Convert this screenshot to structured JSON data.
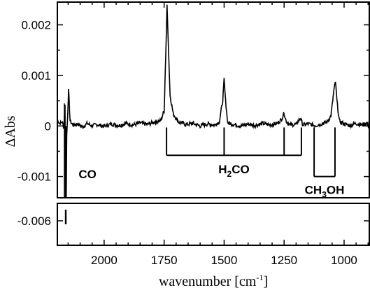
{
  "chart_data": {
    "type": "line",
    "xlabel": "wavenumber [cm",
    "xlabel_sup": "-1",
    "xlabel_end": "]",
    "ylabel": "ΔAbs",
    "x_reversed": true,
    "xlim": [
      2195,
      895
    ],
    "ylim_main": [
      -0.00142,
      0.00245
    ],
    "ylim_break": [
      -0.0067,
      -0.0055
    ],
    "xticks": [
      2000,
      1750,
      1500,
      1250,
      1000
    ],
    "xtick_labels": [
      "2000",
      "1750",
      "1500",
      "1250",
      "1000"
    ],
    "yticks_main": [
      0.002,
      0.001,
      0,
      -0.001
    ],
    "ytick_labels_main": [
      "0.002",
      "0.001",
      "0",
      "-0.001"
    ],
    "yticks_break": [
      -0.006
    ],
    "ytick_labels_break": [
      "-0.006"
    ],
    "series": [
      {
        "values": [
          [
            2195,
            0.00012
          ],
          [
            2185,
            5e-05
          ],
          [
            2175,
            8e-05
          ],
          [
            2168,
            -3e-05
          ],
          [
            2163,
            0.00045
          ],
          [
            2160,
            -0.0061
          ],
          [
            2156,
            -0.0002
          ],
          [
            2148,
            0.0007
          ],
          [
            2142,
            0.0001
          ],
          [
            2130,
            2e-05
          ],
          [
            2110,
            4e-05
          ],
          [
            2090,
            -2e-05
          ],
          [
            2070,
            5e-05
          ],
          [
            2050,
            0.0
          ],
          [
            2030,
            3e-05
          ],
          [
            2000,
            -1e-05
          ],
          [
            1970,
            4e-05
          ],
          [
            1940,
            1e-05
          ],
          [
            1910,
            5e-05
          ],
          [
            1880,
            2e-05
          ],
          [
            1850,
            6e-05
          ],
          [
            1820,
            3e-05
          ],
          [
            1790,
            8e-05
          ],
          [
            1765,
            0.0001
          ],
          [
            1750,
            0.0003
          ],
          [
            1742,
            0.0016
          ],
          [
            1738,
            0.0024
          ],
          [
            1734,
            0.0018
          ],
          [
            1725,
            0.0006
          ],
          [
            1712,
            0.00024
          ],
          [
            1690,
            8e-05
          ],
          [
            1660,
            3e-05
          ],
          [
            1630,
            5e-05
          ],
          [
            1600,
            0.0
          ],
          [
            1570,
            4e-05
          ],
          [
            1540,
            2e-05
          ],
          [
            1520,
            8e-05
          ],
          [
            1506,
            0.0005
          ],
          [
            1500,
            0.00092
          ],
          [
            1494,
            0.0005
          ],
          [
            1485,
            6e-05
          ],
          [
            1460,
            3e-05
          ],
          [
            1430,
            0.0
          ],
          [
            1400,
            4e-05
          ],
          [
            1370,
            1e-05
          ],
          [
            1340,
            5e-05
          ],
          [
            1310,
            2e-05
          ],
          [
            1280,
            5e-05
          ],
          [
            1262,
            0.00012
          ],
          [
            1250,
            0.00026
          ],
          [
            1242,
            0.0001
          ],
          [
            1225,
            2e-05
          ],
          [
            1200,
            3e-05
          ],
          [
            1182,
            0.00016
          ],
          [
            1172,
            2e-05
          ],
          [
            1150,
            4e-05
          ],
          [
            1120,
            1e-05
          ],
          [
            1095,
            4e-05
          ],
          [
            1070,
            8e-05
          ],
          [
            1055,
            0.0002
          ],
          [
            1042,
            0.00072
          ],
          [
            1036,
            0.00088
          ],
          [
            1030,
            0.0005
          ],
          [
            1020,
            0.0001
          ],
          [
            1000,
            4e-05
          ],
          [
            975,
            1e-05
          ],
          [
            950,
            5e-05
          ],
          [
            925,
            2e-05
          ],
          [
            905,
            6e-05
          ],
          [
            895,
            -4e-05
          ]
        ]
      }
    ],
    "annotations": {
      "co": {
        "label": "CO",
        "x": 2153
      },
      "h2co": {
        "label_main": "H",
        "label_sub": "2",
        "label_end": "CO",
        "peaks": [
          1740,
          1500,
          1250,
          1178
        ],
        "top": -3e-05,
        "bottom": -0.00058
      },
      "ch3oh": {
        "label_main": "CH",
        "label_sub": "3",
        "label_end": "OH",
        "peaks": [
          1125,
          1038
        ],
        "top": -3e-05,
        "bottom": -0.001
      }
    }
  }
}
